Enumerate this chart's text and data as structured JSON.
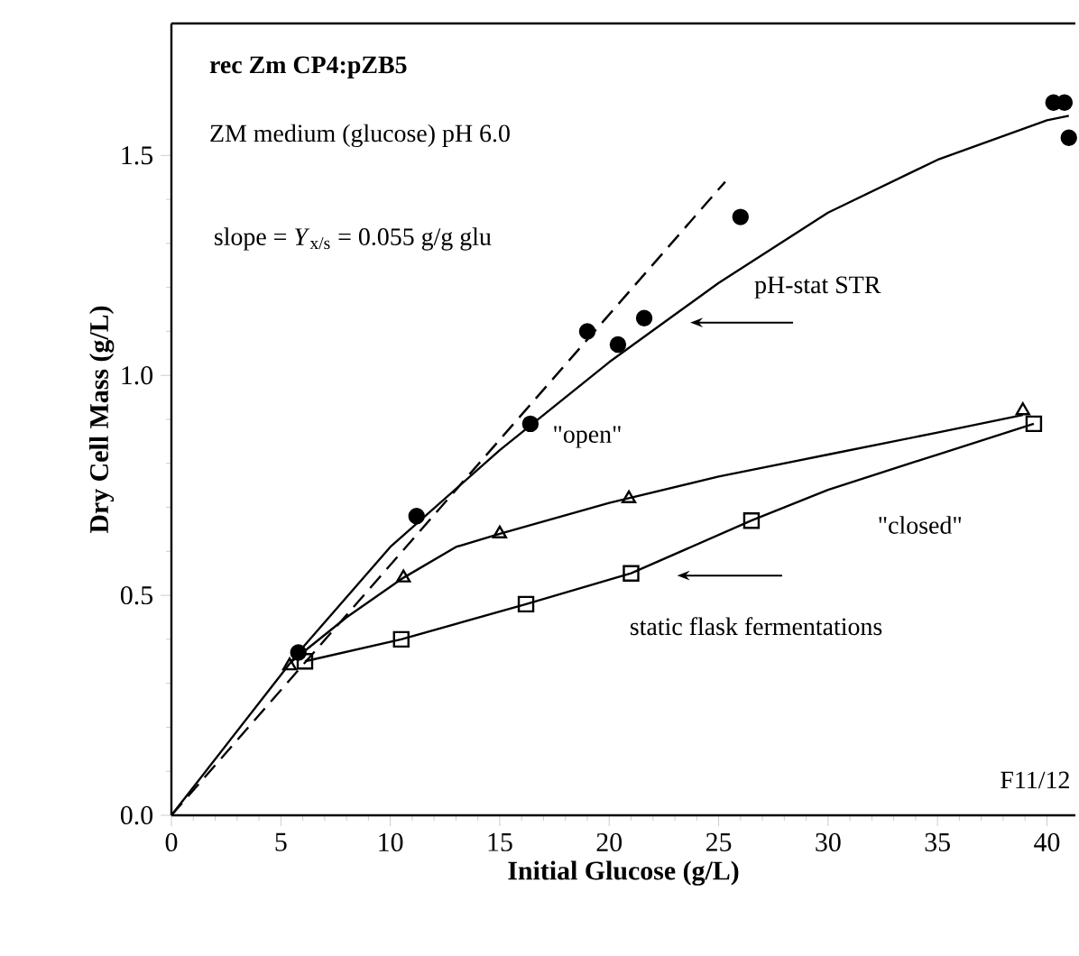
{
  "chart_data": {
    "type": "scatter",
    "xlabel": "Initial Glucose  (g/L)",
    "ylabel": "Dry Cell Mass  (g/L)",
    "xlim": [
      0,
      41.3
    ],
    "ylim": [
      0,
      1.8
    ],
    "xticks": [
      0,
      5,
      10,
      15,
      20,
      25,
      30,
      35,
      40
    ],
    "yticks": [
      {
        "value": 0,
        "label": "0.0"
      },
      {
        "value": 0.5,
        "label": "0.5"
      },
      {
        "value": 1.0,
        "label": "1.0"
      },
      {
        "value": 1.5,
        "label": "1.5"
      }
    ],
    "series": [
      {
        "marker": "circle",
        "color": "#000000",
        "x": [
          5.8,
          11.2,
          16.4,
          19.0,
          20.4,
          21.6,
          26.0,
          40.3,
          40.8,
          41.0
        ],
        "values": [
          0.37,
          0.68,
          0.89,
          1.1,
          1.07,
          1.13,
          1.36,
          1.62,
          1.62,
          1.54
        ]
      },
      {
        "marker": "triangle",
        "color": "#000000",
        "x": [
          5.4,
          10.6,
          15.0,
          20.9,
          38.9
        ],
        "values": [
          0.34,
          0.54,
          0.64,
          0.72,
          0.92
        ]
      },
      {
        "marker": "square",
        "color": "#000000",
        "x": [
          6.1,
          10.5,
          16.2,
          21.0,
          26.5,
          39.4
        ],
        "values": [
          0.35,
          0.4,
          0.48,
          0.55,
          0.67,
          0.89
        ]
      },
      {
        "type": "line",
        "marker": "none",
        "line_style": "solid",
        "color": "#000000",
        "x": [
          0,
          5.8,
          10,
          15,
          20,
          25,
          30,
          35,
          40,
          41.0
        ],
        "values": [
          0,
          0.37,
          0.61,
          0.83,
          1.03,
          1.21,
          1.37,
          1.49,
          1.58,
          1.59
        ]
      },
      {
        "type": "line",
        "marker": "none",
        "line_style": "solid",
        "color": "#000000",
        "x": [
          5.5,
          8,
          10.6,
          13,
          15,
          20,
          25,
          30,
          35,
          38.9
        ],
        "values": [
          0.35,
          0.45,
          0.54,
          0.61,
          0.64,
          0.71,
          0.77,
          0.82,
          0.87,
          0.91
        ]
      },
      {
        "type": "line",
        "marker": "none",
        "line_style": "solid",
        "color": "#000000",
        "x": [
          6.1,
          10.5,
          16.2,
          21.0,
          26.5,
          30,
          35,
          39.4
        ],
        "values": [
          0.35,
          0.4,
          0.48,
          0.55,
          0.67,
          0.74,
          0.82,
          0.89
        ]
      },
      {
        "type": "line",
        "marker": "none",
        "line_style": "dashed",
        "color": "#000000",
        "x": [
          0,
          25.3
        ],
        "values": [
          0,
          1.44
        ]
      }
    ],
    "annotations": [
      "rec Zm CP4:pZB5",
      "ZM medium (glucose)   pH 6.0",
      "slope = *Y*$_{x/s}$ = 0.055 g/g glu",
      "pH-stat STR",
      "\"open\"",
      "\"closed\"",
      "static flask fermentations",
      "F11/12"
    ]
  }
}
